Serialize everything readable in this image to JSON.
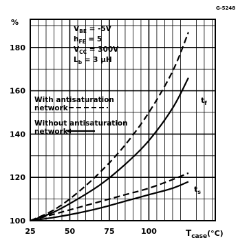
{
  "figure_code": "G-5248",
  "chart_data": {
    "type": "line",
    "ylabel": "%",
    "xlabel_main": "T",
    "xlabel_sub": "case",
    "xlabel_unit": "(°C)",
    "xlim": [
      25,
      142
    ],
    "ylim": [
      100,
      193
    ],
    "x_ticks": [
      25,
      50,
      75,
      100
    ],
    "y_ticks": [
      100,
      120,
      140,
      160,
      180
    ],
    "x_tick_labels": [
      "25",
      "50",
      "75",
      "100"
    ],
    "y_tick_labels": [
      "100",
      "120",
      "140",
      "160",
      "180"
    ],
    "grid": true,
    "conditions": {
      "vbe_sym": "V",
      "vbe_sub": "BE",
      "vbe_val": " = -5V",
      "hfe_sym": "h",
      "hfe_sub": "FE",
      "hfe_val": " = 5",
      "vcc_sym": "V",
      "vcc_sub": "CC",
      "vcc_val": " = 300V",
      "lb_sym": "L",
      "lb_sub": "b",
      "lb_val": " = 3 µH"
    },
    "legend": {
      "with_line1": "With  antisaturation",
      "with_line2": "network",
      "without_line1": "Without  antisaturation",
      "without_line2": "network"
    },
    "curve_labels": {
      "tf_main": "t",
      "tf_sub": "f",
      "ts_main": "t",
      "ts_sub": "s"
    },
    "series": [
      {
        "style": "dashed",
        "label": "tf",
        "x": [
          25,
          40,
          55,
          70,
          85,
          100,
          115,
          125
        ],
        "y": [
          100,
          105,
          113,
          123,
          135,
          150,
          169,
          187
        ]
      },
      {
        "style": "solid",
        "label": "tf",
        "x": [
          25,
          40,
          55,
          70,
          85,
          100,
          115,
          125
        ],
        "y": [
          100,
          104,
          110,
          117,
          126,
          137,
          152,
          166
        ]
      },
      {
        "style": "dashed",
        "label": "ts",
        "x": [
          25,
          40,
          55,
          70,
          85,
          100,
          115,
          125
        ],
        "y": [
          100,
          103,
          106,
          109,
          112,
          115,
          119,
          122
        ]
      },
      {
        "style": "solid",
        "label": "ts",
        "x": [
          25,
          40,
          55,
          70,
          85,
          100,
          115,
          125
        ],
        "y": [
          100,
          101.5,
          103.5,
          106,
          109,
          112,
          115,
          118
        ]
      }
    ]
  }
}
